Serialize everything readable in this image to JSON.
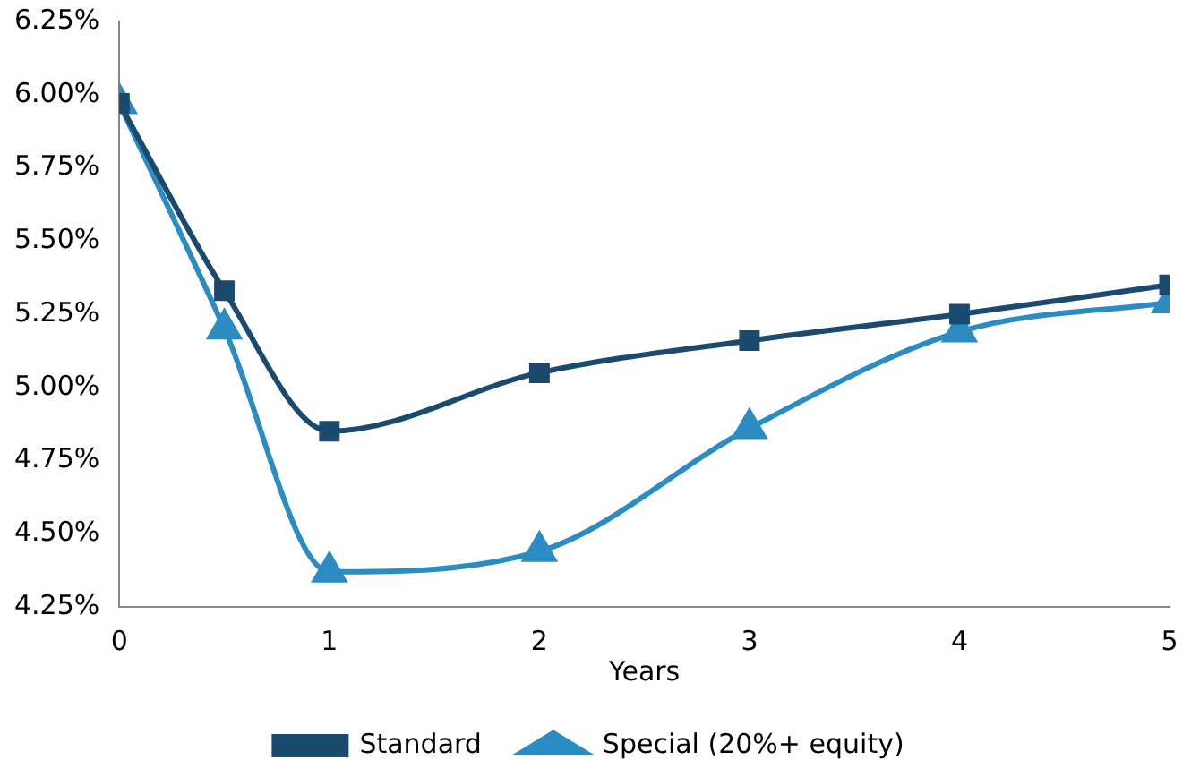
{
  "chart_data": {
    "type": "line",
    "xlabel": "Years",
    "x": [
      0,
      0.5,
      1,
      2,
      3,
      4,
      5
    ],
    "series": [
      {
        "name": "Standard",
        "color": "#1b4a6f",
        "marker": "square",
        "values": [
          5.97,
          5.33,
          4.85,
          5.05,
          5.16,
          5.25,
          5.35
        ]
      },
      {
        "name": "Special (20%+ equity)",
        "color": "#2b8bc3",
        "marker": "triangle",
        "values": [
          5.97,
          5.2,
          4.37,
          4.44,
          4.86,
          5.19,
          5.29
        ]
      }
    ],
    "xlim": [
      0,
      5
    ],
    "xticks": [
      0,
      1,
      2,
      3,
      4,
      5
    ],
    "ylim": [
      4.25,
      6.25
    ],
    "yticks": [
      {
        "value": 4.25,
        "label": "4.25%"
      },
      {
        "value": 4.5,
        "label": "4.50%"
      },
      {
        "value": 4.75,
        "label": "4.75%"
      },
      {
        "value": 5,
        "label": "5.00%"
      },
      {
        "value": 5.25,
        "label": "5.25%"
      },
      {
        "value": 5.5,
        "label": "5.50%"
      },
      {
        "value": 5.75,
        "label": "5.75%"
      },
      {
        "value": 6,
        "label": "6.00%"
      },
      {
        "value": 6.25,
        "label": "6.25%"
      }
    ],
    "grid": false,
    "legend": "bottom",
    "line_style": "solid"
  }
}
